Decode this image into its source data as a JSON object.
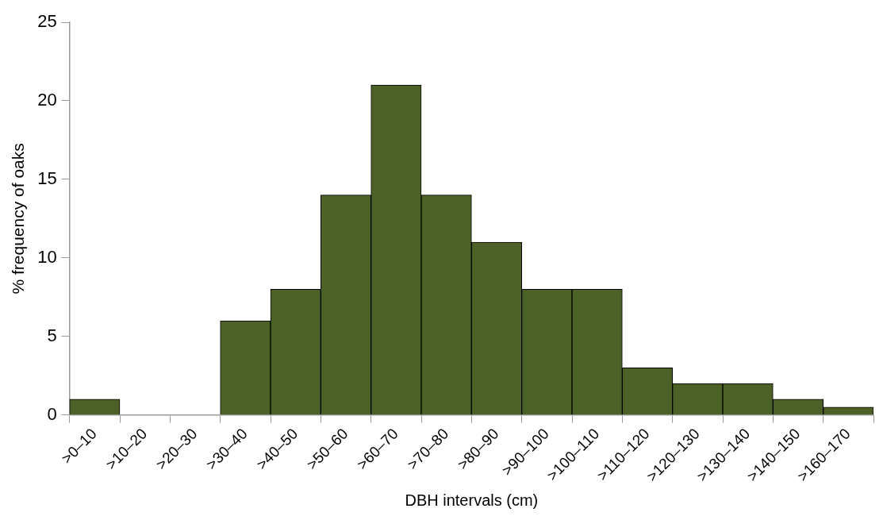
{
  "chart_data": {
    "type": "bar",
    "xlabel": "DBH intervals (cm)",
    "ylabel": "% frequency of oaks",
    "categories": [
      ">0–10",
      ">10–20",
      ">20–30",
      ">30–40",
      ">40–50",
      ">50–60",
      ">60–70",
      ">70–80",
      ">80–90",
      ">90–100",
      ">100–110",
      ">110–120",
      ">120–130",
      ">130–140",
      ">140–150",
      ">160–170"
    ],
    "values": [
      1,
      0,
      0,
      6,
      8,
      14,
      21,
      14,
      11,
      8,
      8,
      3,
      2,
      2,
      1,
      0.5
    ],
    "color": "#4c6126",
    "ylim": [
      0,
      25
    ],
    "yticks": [
      0,
      5,
      10,
      15,
      20,
      25
    ],
    "grid": false,
    "legend": false
  }
}
